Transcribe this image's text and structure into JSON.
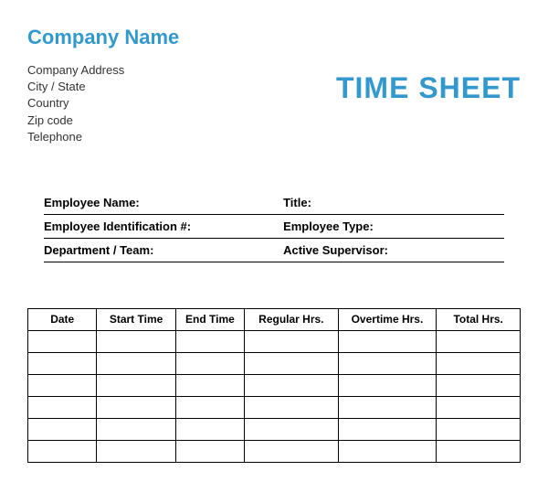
{
  "header": {
    "company_name": "Company Name",
    "address_lines": [
      "Company Address",
      "City / State",
      "Country",
      "Zip code",
      "Telephone"
    ],
    "sheet_title": "TIME SHEET"
  },
  "info": {
    "rows": [
      {
        "left": "Employee Name:",
        "right": "Title:"
      },
      {
        "left": "Employee Identification #:",
        "right": "Employee Type:"
      },
      {
        "left": "Department / Team:",
        "right": "Active Supervisor:"
      }
    ]
  },
  "table": {
    "type": "table",
    "columns": [
      "Date",
      "Start Time",
      "End Time",
      "Regular Hrs.",
      "Overtime Hrs.",
      "Total Hrs."
    ],
    "column_widths_pct": [
      14,
      16,
      14,
      19,
      20,
      17
    ],
    "row_count": 6,
    "border_color": "#000000",
    "header_fontsize": 12,
    "header_fontweight": "bold"
  },
  "colors": {
    "accent": "#3399cc",
    "text": "#000000",
    "address_text": "#333333",
    "background": "#ffffff"
  },
  "typography": {
    "company_name_size": 22,
    "title_size": 32,
    "address_size": 13,
    "info_label_size": 13,
    "table_header_size": 12
  }
}
